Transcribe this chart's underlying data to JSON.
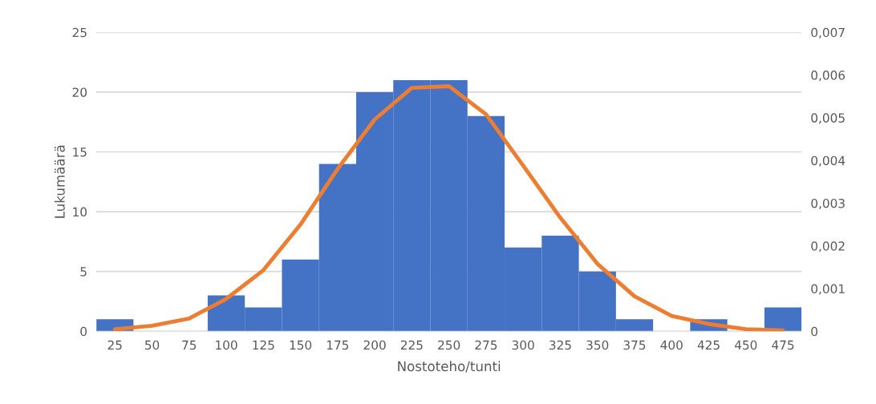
{
  "chart_data": {
    "type": "bar",
    "xlabel": "Nostoteho/tunti",
    "ylabel": "Lukumäärä",
    "categories": [
      "25",
      "50",
      "75",
      "100",
      "125",
      "150",
      "175",
      "200",
      "225",
      "250",
      "275",
      "300",
      "325",
      "350",
      "375",
      "400",
      "425",
      "450",
      "475"
    ],
    "series": [
      {
        "color": "#4472c4",
        "values": [
          1,
          0,
          0,
          3,
          2,
          6,
          14,
          20,
          21,
          21,
          18,
          7,
          8,
          5,
          1,
          0,
          1,
          0,
          2
        ]
      },
      {
        "type": "line",
        "axis": "y2",
        "color": "#ed7d31",
        "values": [
          5e-05,
          0.00013,
          0.0003,
          0.00076,
          0.00143,
          0.0025,
          0.0038,
          0.00496,
          0.0057,
          0.00574,
          0.00508,
          0.00388,
          0.00266,
          0.00158,
          0.00082,
          0.00036,
          0.00017,
          5e-05,
          2e-05
        ]
      }
    ],
    "ylim": [
      0,
      25
    ],
    "yticks": [
      0,
      5,
      10,
      15,
      20,
      25
    ],
    "y2lim": [
      0,
      0.007
    ],
    "y2ticks": [
      0,
      {
        "value": 0.001,
        "label": "0,001"
      },
      {
        "value": 0.002,
        "label": "0,002"
      },
      {
        "value": 0.003,
        "label": "0,003"
      },
      {
        "value": 0.004,
        "label": "0,004"
      },
      {
        "value": 0.005,
        "label": "0,005"
      },
      {
        "value": 0.006,
        "label": "0,006"
      },
      {
        "value": 0.007,
        "label": "0,007"
      }
    ],
    "grid": "y",
    "marker": "none",
    "line_style": "solid"
  }
}
